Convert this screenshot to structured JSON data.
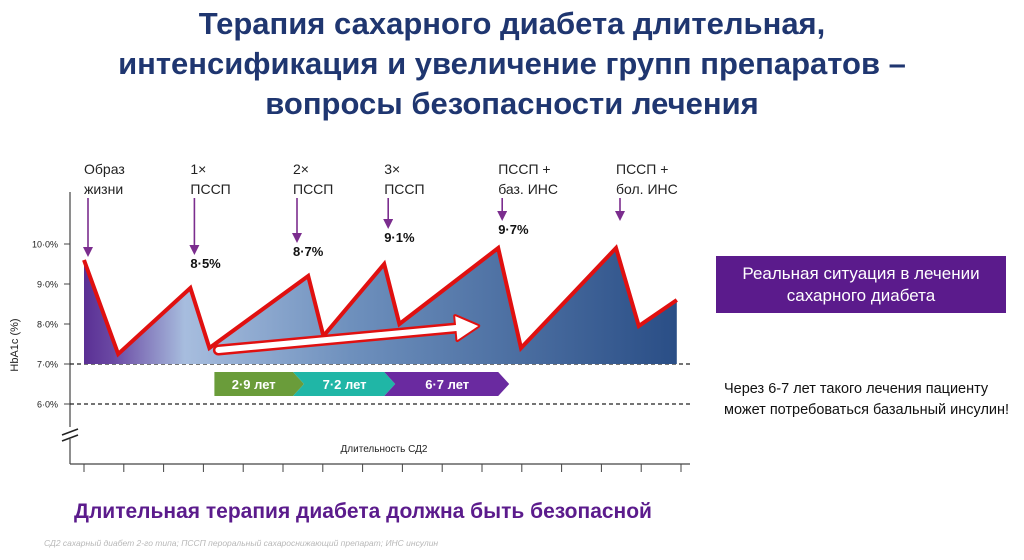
{
  "title_lines": [
    "Терапия сахарного диабета длительная,",
    "интенсификация и увеличение групп препаратов –",
    "вопросы безопасности лечения"
  ],
  "chart_data": {
    "type": "area",
    "ylabel": "HbA1c (%)",
    "xlabel": "Длительность СД2",
    "yticks": [
      "6·0%",
      "7·0%",
      "8·0%",
      "9·0%",
      "10·0%"
    ],
    "ylim": [
      5.2,
      10.6
    ],
    "reference_lines": [
      7.0,
      6.0
    ],
    "x_ticks_count": 16,
    "series": [
      {
        "x": [
          0,
          0.9,
          2.8,
          3.3,
          5.9,
          6.3,
          7.9,
          8.3,
          10.9,
          11.5,
          14.0,
          14.6,
          15.6
        ],
        "values": [
          9.6,
          7.25,
          8.9,
          7.4,
          9.2,
          7.7,
          9.5,
          8.0,
          9.9,
          7.4,
          9.9,
          7.95,
          8.6
        ]
      }
    ],
    "steps": [
      {
        "label": [
          "Образ",
          "жизни"
        ],
        "x": 0.0,
        "value": ""
      },
      {
        "label": [
          "1×",
          "ПССП"
        ],
        "x": 2.8,
        "value": "8·5%"
      },
      {
        "label": [
          "2×",
          "ПССП"
        ],
        "x": 5.5,
        "value": "8·7%"
      },
      {
        "label": [
          "3×",
          "ПССП"
        ],
        "x": 7.9,
        "value": "9·1%"
      },
      {
        "label": [
          "ПССП +",
          "баз. ИНС"
        ],
        "x": 10.9,
        "value": "9·7%"
      },
      {
        "label": [
          "ПССП +",
          "бол. ИНС"
        ],
        "x": 14.0,
        "value": ""
      }
    ],
    "duration_segments": [
      {
        "label": "2·9 лет",
        "color": "#6a9c3a",
        "x0": 2.8,
        "x1": 5.5
      },
      {
        "label": "7·2 лет",
        "color": "#20b6a6",
        "x0": 5.5,
        "x1": 7.9
      },
      {
        "label": "6·7 лет",
        "color": "#6a2aa0",
        "x0": 7.9,
        "x1": 10.9
      }
    ],
    "trend_arrow": {
      "x0": 3.8,
      "y0": 7.3,
      "x1": 10.9,
      "y1": 8.05
    }
  },
  "info_box": {
    "text": "Реальная ситуация в лечении сахарного диабета",
    "color": "#5b1b8c"
  },
  "note_lines": [
    "Через 6-7 лет такого лечения пациенту",
    "может потребоваться базальный инсулин!"
  ],
  "conclusion": "Длительная терапия диабета должна быть безопасной",
  "footnote": "СД2 сахарный диабет 2-го типа; ПССП пероральный сахароснижающий препарат; ИНС инсулин",
  "colors": {
    "title": "#1f3670",
    "line": "#e01010",
    "step_marker": "#7b2d8e",
    "area_dark": "#2a4e86",
    "area_light": "#a7bdde",
    "area_purple": "#5a2f94"
  }
}
